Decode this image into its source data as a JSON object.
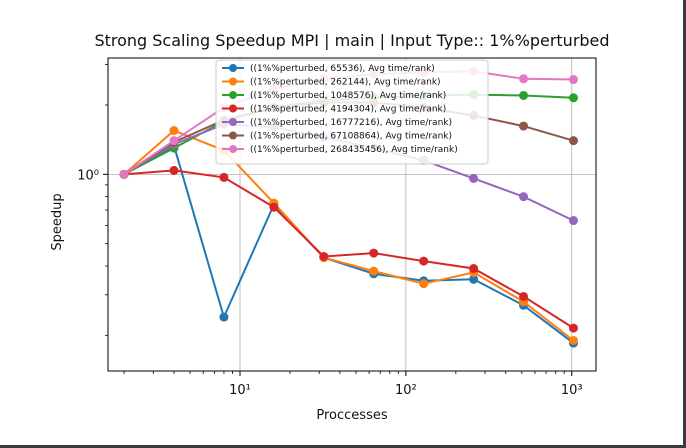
{
  "chart_data": {
    "type": "line",
    "title": "Strong Scaling Speedup MPI | main | Input Type:: 1%%perturbed",
    "xlabel": "Proccesses",
    "ylabel": "Speedup",
    "x_scale": "log2-data on log10 axis",
    "x": [
      2,
      4,
      8,
      16,
      32,
      64,
      128,
      256,
      512,
      1024
    ],
    "xticks": [
      {
        "value": 10,
        "label": "10¹"
      },
      {
        "value": 100,
        "label": "10²"
      },
      {
        "value": 1000,
        "label": "10³"
      }
    ],
    "yticks": [
      {
        "value": 1,
        "label": "10⁰"
      }
    ],
    "y_scale": "log",
    "xlim": [
      1.6,
      1400
    ],
    "ylim": [
      0.14,
      3.2
    ],
    "grid": true,
    "legend_position": "top-center",
    "series": [
      {
        "name": "((1%%perturbed, 65536), Avg time/rank)",
        "color": "#1f77b4",
        "values": [
          1.0,
          1.33,
          0.24,
          0.74,
          0.435,
          0.37,
          0.345,
          0.35,
          0.27,
          0.185
        ]
      },
      {
        "name": "((1%%perturbed, 262144), Avg time/rank)",
        "color": "#ff7f0e",
        "values": [
          1.0,
          1.55,
          1.27,
          0.75,
          0.435,
          0.38,
          0.335,
          0.375,
          0.28,
          0.19
        ]
      },
      {
        "name": "((1%%perturbed, 1048576), Avg time/rank)",
        "color": "#2ca02c",
        "values": [
          1.0,
          1.3,
          1.7,
          1.95,
          2.1,
          2.15,
          2.2,
          2.22,
          2.2,
          2.15
        ]
      },
      {
        "name": "((1%%perturbed, 4194304), Avg time/rank)",
        "color": "#d62728",
        "values": [
          1.0,
          1.04,
          0.97,
          0.72,
          0.44,
          0.455,
          0.42,
          0.39,
          0.295,
          0.215
        ]
      },
      {
        "name": "((1%%perturbed, 16777216), Avg time/rank)",
        "color": "#9467bd",
        "values": [
          1.0,
          1.35,
          1.65,
          1.6,
          1.45,
          1.3,
          1.15,
          0.96,
          0.8,
          0.63
        ]
      },
      {
        "name": "((1%%perturbed, 67108864), Avg time/rank)",
        "color": "#8c564b",
        "values": [
          1.0,
          1.38,
          1.72,
          1.95,
          2.05,
          2.05,
          1.95,
          1.8,
          1.62,
          1.4
        ]
      },
      {
        "name": "((1%%perturbed, 268435456), Avg time/rank)",
        "color": "#e377c2",
        "values": [
          1.0,
          1.4,
          1.95,
          2.35,
          2.6,
          2.72,
          2.78,
          2.8,
          2.6,
          2.58
        ]
      }
    ]
  }
}
